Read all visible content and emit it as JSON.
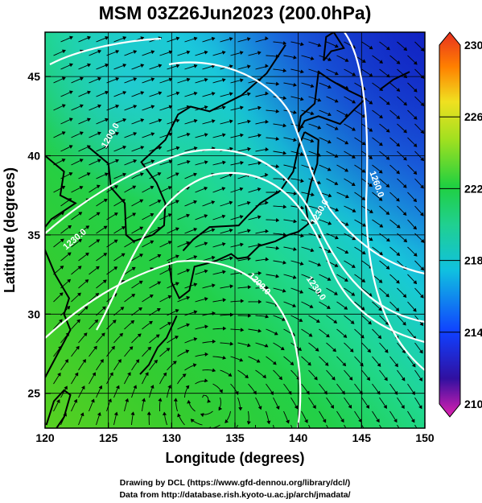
{
  "title": "MSM 03Z26Jun2023 (200.0hPa)",
  "x_axis": {
    "label": "Longitude (degrees)",
    "range": [
      120,
      150
    ],
    "ticks": [
      "120",
      "125",
      "130",
      "135",
      "140",
      "145",
      "150"
    ]
  },
  "y_axis": {
    "label": "Latitude  (degrees)",
    "range": [
      22.8,
      47.8
    ],
    "ticks": [
      "25",
      "30",
      "35",
      "40",
      "45"
    ]
  },
  "colorbar": {
    "range": [
      210,
      230
    ],
    "ticks": [
      "230",
      "226",
      "222",
      "218",
      "214",
      "210"
    ],
    "colors": [
      "#e020b0",
      "#3010a0",
      "#1040ff",
      "#10c0e0",
      "#20d090",
      "#20d040",
      "#a0e020",
      "#f0e020",
      "#ff8000",
      "#e83020"
    ]
  },
  "contours": {
    "color": "#ffffff",
    "labels": [
      "1200.0",
      "1230.0",
      "1200.0",
      "1230.0",
      "1230.0",
      "1260.0"
    ]
  },
  "credits": {
    "line1": "Drawing by DCL (https://www.gfd-dennou.org/library/dcl/)",
    "line2": "Data from http://database.rish.kyoto-u.ac.jp/arch/jmadata/"
  }
}
